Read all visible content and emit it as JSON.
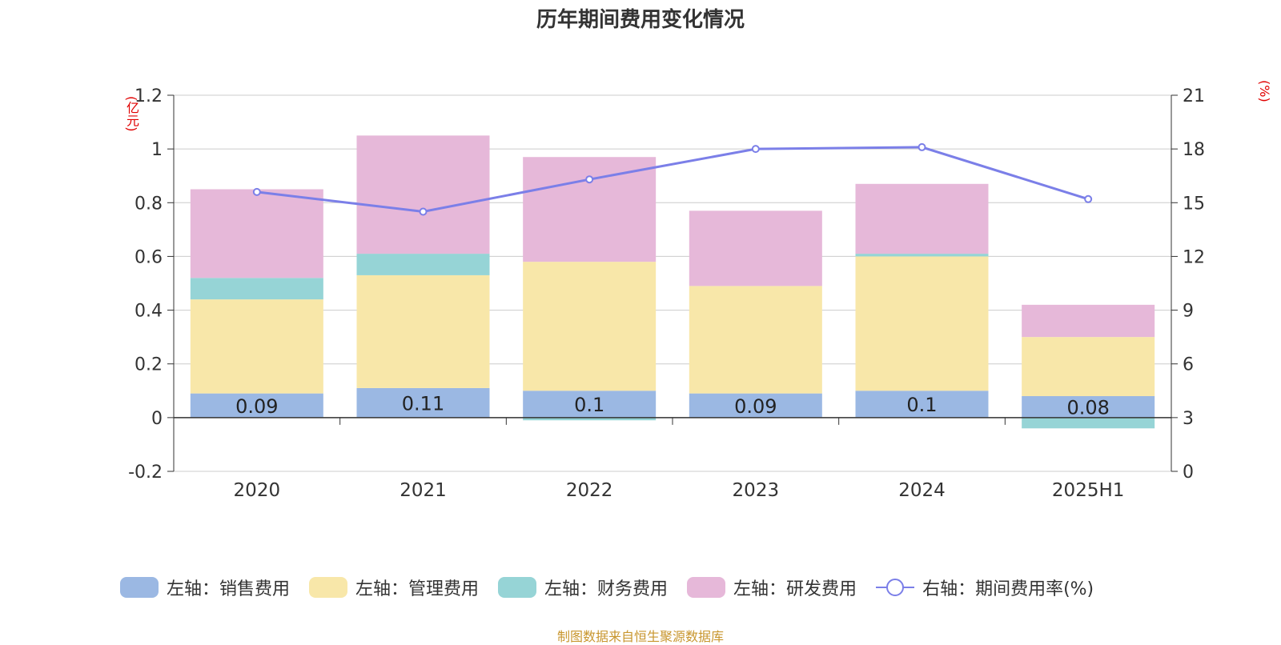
{
  "title": "历年期间费用变化情况",
  "unit_left": "(亿元)",
  "unit_right": "(%)",
  "source": "制图数据来自恒生聚源数据库",
  "legend": [
    {
      "label": "左轴：销售费用",
      "color": "#9bb8e3",
      "kind": "bar"
    },
    {
      "label": "左轴：管理费用",
      "color": "#f8e7a9",
      "kind": "bar"
    },
    {
      "label": "左轴：财务费用",
      "color": "#96d4d6",
      "kind": "bar"
    },
    {
      "label": "左轴：研发费用",
      "color": "#e6b8d9",
      "kind": "bar"
    },
    {
      "label": "右轴：期间费用率(%)",
      "color": "#7b7fe8",
      "kind": "line"
    }
  ],
  "chart_data": {
    "type": "bar",
    "stacked": true,
    "categories": [
      "2020",
      "2021",
      "2022",
      "2023",
      "2024",
      "2025H1"
    ],
    "series": [
      {
        "name": "左轴：销售费用",
        "axis": "left",
        "color": "#9bb8e3",
        "values": [
          0.09,
          0.11,
          0.1,
          0.09,
          0.1,
          0.08
        ],
        "labels": [
          "0.09",
          "0.11",
          "0.1",
          "0.09",
          "0.1",
          "0.08"
        ]
      },
      {
        "name": "左轴：管理费用",
        "axis": "left",
        "color": "#f8e7a9",
        "values": [
          0.35,
          0.42,
          0.48,
          0.4,
          0.5,
          0.22
        ]
      },
      {
        "name": "左轴：财务费用",
        "axis": "left",
        "color": "#96d4d6",
        "values": [
          0.08,
          0.08,
          -0.01,
          0.0,
          0.01,
          -0.04
        ]
      },
      {
        "name": "左轴：研发费用",
        "axis": "left",
        "color": "#e6b8d9",
        "values": [
          0.33,
          0.44,
          0.39,
          0.28,
          0.26,
          0.12
        ]
      },
      {
        "name": "右轴：期间费用率(%)",
        "axis": "right",
        "type": "line",
        "color": "#7b7fe8",
        "values": [
          15.6,
          14.5,
          16.3,
          18.0,
          18.1,
          15.2
        ]
      }
    ],
    "left_axis": {
      "min": -0.2,
      "max": 1.2,
      "ticks": [
        "-0.2",
        "0",
        "0.2",
        "0.4",
        "0.6",
        "0.8",
        "1",
        "1.2"
      ]
    },
    "right_axis": {
      "min": 0,
      "max": 21,
      "ticks": [
        "0",
        "3",
        "6",
        "9",
        "12",
        "15",
        "18",
        "21"
      ]
    },
    "grid": true,
    "legend_position": "bottom"
  }
}
